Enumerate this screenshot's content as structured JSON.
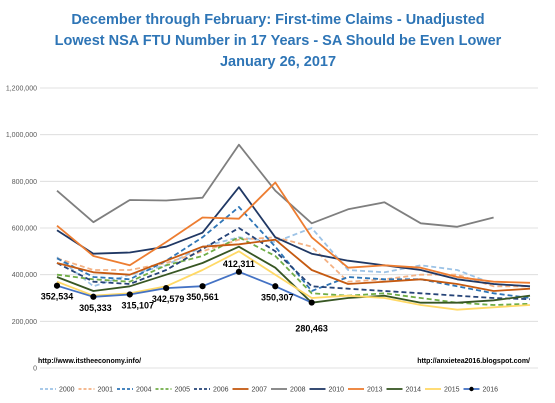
{
  "chart_data": {
    "type": "line",
    "title": [
      "December through February: First-time Claims - Unadjusted",
      "Lowest NSA FTU Number in 17 Years - SA Should be Even Lower",
      "January 26, 2017"
    ],
    "ylim": [
      0,
      1200000
    ],
    "yticks": [
      "0",
      "200,000",
      "400,000",
      "600,000",
      "800,000",
      "1,000,000",
      "1,200,000"
    ],
    "grid": true,
    "legend_position": "bottom",
    "sources": {
      "left": "http://www.itstheeconomy.info/",
      "right": "http://anxietea2016.blogspot.com/"
    },
    "series": [
      {
        "name": "2000",
        "color": "#9dc3e6",
        "dash": "5,3",
        "values": [
          475000,
          350000,
          400000,
          440000,
          520000,
          560000,
          540000,
          600000,
          420000,
          410000,
          440000,
          420000,
          360000,
          350000
        ]
      },
      {
        "name": "2001",
        "color": "#f4b183",
        "dash": "5,3",
        "values": [
          470000,
          420000,
          420000,
          450000,
          500000,
          550000,
          560000,
          520000,
          370000,
          380000,
          400000,
          400000,
          350000,
          350000
        ]
      },
      {
        "name": "2004",
        "color": "#2e75b6",
        "dash": "5,3",
        "values": [
          470000,
          390000,
          380000,
          460000,
          560000,
          690000,
          520000,
          330000,
          390000,
          380000,
          380000,
          350000,
          320000,
          300000
        ]
      },
      {
        "name": "2005",
        "color": "#70ad47",
        "dash": "5,3",
        "values": [
          400000,
          380000,
          370000,
          440000,
          480000,
          560000,
          480000,
          320000,
          310000,
          320000,
          300000,
          280000,
          270000,
          275000
        ]
      },
      {
        "name": "2006",
        "color": "#264478",
        "dash": "5,3",
        "values": [
          450000,
          370000,
          360000,
          420000,
          510000,
          600000,
          500000,
          350000,
          340000,
          330000,
          320000,
          310000,
          300000,
          295000
        ]
      },
      {
        "name": "2007",
        "color": "#c55a11",
        "dash": "",
        "values": [
          450000,
          410000,
          400000,
          460000,
          520000,
          530000,
          550000,
          420000,
          360000,
          370000,
          380000,
          360000,
          330000,
          340000
        ]
      },
      {
        "name": "2008",
        "color": "#7f7f7f",
        "dash": "",
        "values": [
          760000,
          625000,
          720000,
          718000,
          730000,
          957000,
          760000,
          620000,
          680000,
          710000,
          620000,
          605000,
          645000,
          null
        ]
      },
      {
        "name": "2010",
        "color": "#203864",
        "dash": "",
        "values": [
          590000,
          490000,
          495000,
          520000,
          580000,
          775000,
          560000,
          490000,
          460000,
          440000,
          420000,
          380000,
          360000,
          350000
        ]
      },
      {
        "name": "2013",
        "color": "#ed7d31",
        "dash": "",
        "values": [
          610000,
          480000,
          440000,
          540000,
          645000,
          640000,
          795000,
          560000,
          430000,
          440000,
          430000,
          390000,
          370000,
          365000
        ]
      },
      {
        "name": "2014",
        "color": "#375623",
        "dash": "",
        "values": [
          390000,
          330000,
          350000,
          400000,
          450000,
          520000,
          430000,
          280000,
          300000,
          310000,
          280000,
          280000,
          290000,
          310000
        ]
      },
      {
        "name": "2015",
        "color": "#ffd966",
        "dash": "",
        "values": [
          370000,
          310000,
          320000,
          350000,
          420000,
          500000,
          400000,
          300000,
          310000,
          300000,
          270000,
          250000,
          260000,
          270000
        ]
      },
      {
        "name": "2016",
        "color": "#4472c4",
        "dash": "",
        "marker": true,
        "values": [
          352534,
          305333,
          315107,
          342579,
          350561,
          412311,
          350307,
          280463,
          null,
          null,
          null,
          null,
          null,
          null
        ]
      }
    ],
    "data_labels": [
      "352,534",
      "305,333",
      "315,107",
      "342,579",
      "350,561",
      "412,311",
      "350,307",
      "280,463"
    ]
  }
}
